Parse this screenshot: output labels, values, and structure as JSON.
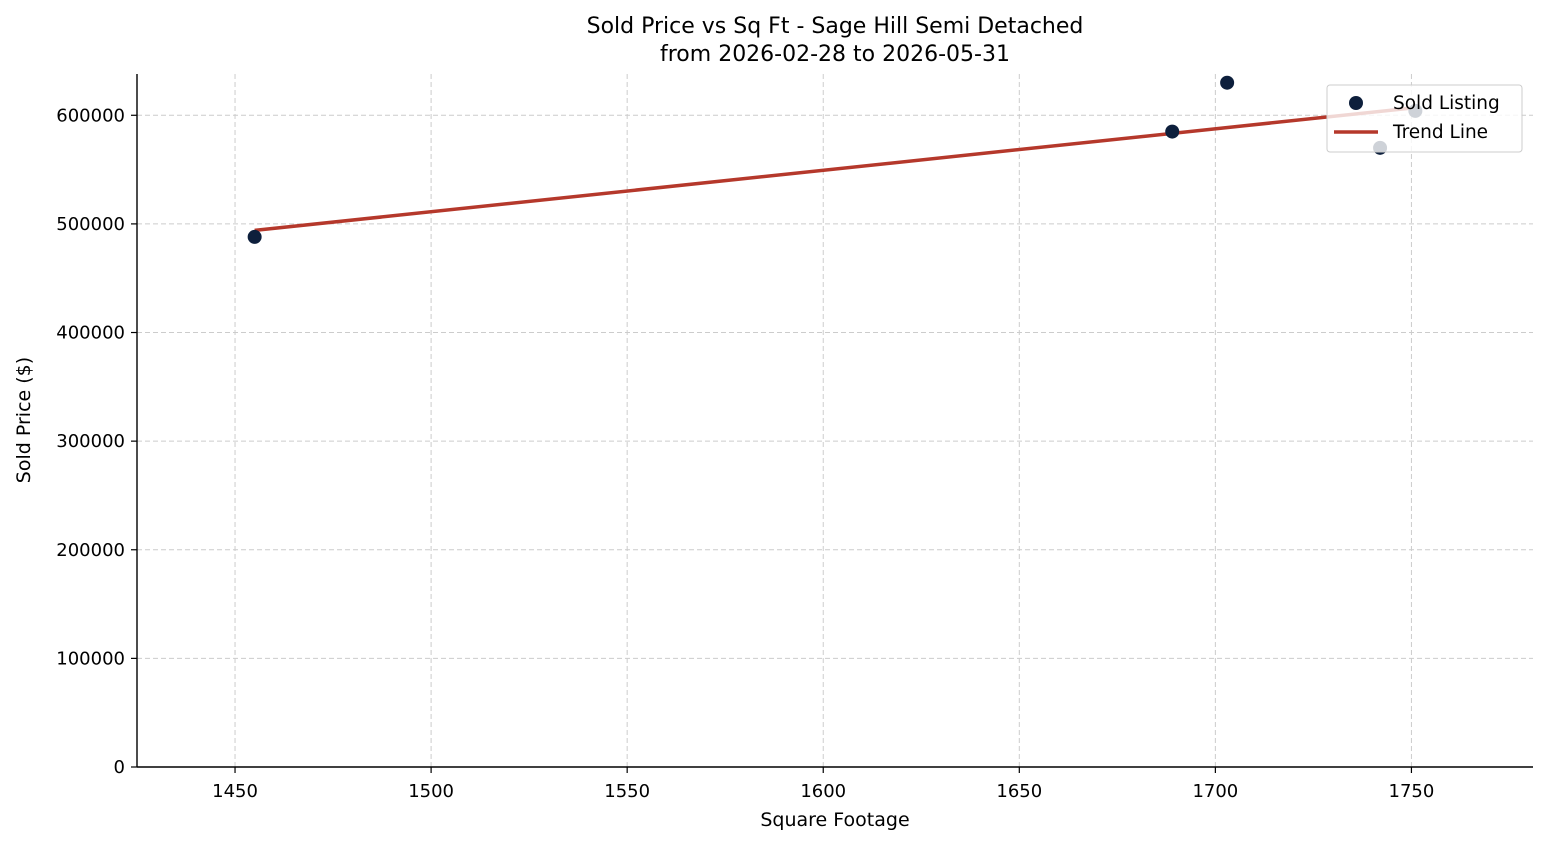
{
  "chart_data": {
    "type": "scatter",
    "title": "Sold Price vs Sq Ft - Sage Hill Semi Detached",
    "subtitle": "from 2026-02-28 to 2026-05-31",
    "xlabel": "Square Footage",
    "ylabel": "Sold Price ($)",
    "xlim": [
      1425,
      1781
    ],
    "ylim": [
      0,
      638000
    ],
    "xticks": [
      1450,
      1500,
      1550,
      1600,
      1650,
      1700,
      1750
    ],
    "yticks": [
      0,
      100000,
      200000,
      300000,
      400000,
      500000,
      600000
    ],
    "grid": true,
    "legend": "top-right",
    "series": [
      {
        "name": "Sold Listing",
        "kind": "scatter",
        "color": "#0d1f3c",
        "points": [
          {
            "x": 1455,
            "y": 488000
          },
          {
            "x": 1689,
            "y": 585000
          },
          {
            "x": 1703,
            "y": 630000
          },
          {
            "x": 1742,
            "y": 570000
          },
          {
            "x": 1751,
            "y": 604000
          }
        ]
      },
      {
        "name": "Trend Line",
        "kind": "line",
        "color": "#b5382b",
        "points": [
          {
            "x": 1455,
            "y": 494000
          },
          {
            "x": 1751,
            "y": 607000
          }
        ]
      }
    ]
  }
}
